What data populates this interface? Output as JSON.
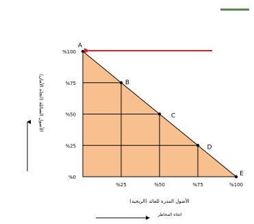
{
  "chart_data": {
    "type": "area",
    "x_ticks": [
      "%25",
      "%50",
      "%75",
      "%100"
    ],
    "y_ticks": [
      "%0",
      "%25",
      "%50",
      "%75",
      "%100"
    ],
    "origin_label": "%0",
    "origin_x_label": "%0",
    "xlim": [
      0,
      100
    ],
    "ylim": [
      0,
      100
    ],
    "grid": true,
    "points": [
      {
        "label": "A",
        "x": 0,
        "y": 100
      },
      {
        "label": "B",
        "x": 25,
        "y": 75
      },
      {
        "label": "C",
        "x": 50,
        "y": 50
      },
      {
        "label": "D",
        "x": 75,
        "y": 25
      },
      {
        "label": "E",
        "x": 100,
        "y": 0
      }
    ],
    "xlabel": "(الأصول المدرة للعائد (الربحية",
    "ylabel": "(الأصول السائلة (اتجاه الأمان",
    "x_direction_label": "اتجاه المخاطر",
    "fill_color": "#f7c08e",
    "line_color": "#000000",
    "arrow_color": "#e02020",
    "accent_color": "#5a7d4a"
  }
}
